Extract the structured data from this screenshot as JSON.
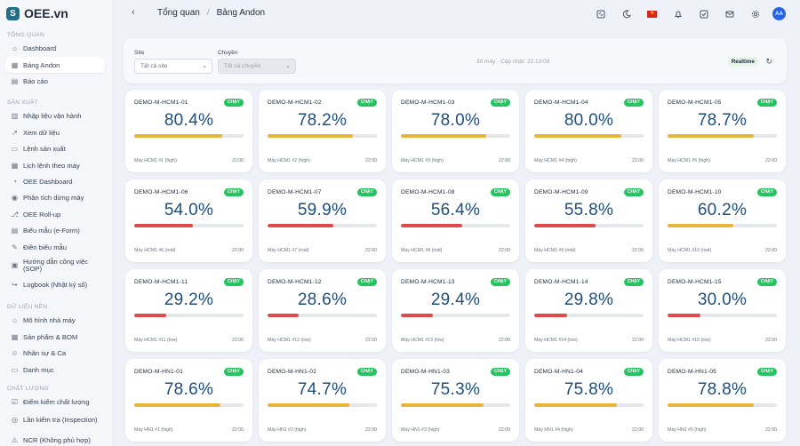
{
  "app": {
    "logo_mark": "S",
    "title": "OEE.vn"
  },
  "sidebar": {
    "sections": [
      {
        "title": "TỔNG QUAN",
        "items": [
          {
            "label": "Dashboard",
            "icon": "home-icon"
          },
          {
            "label": "Bảng Andon",
            "icon": "grid-icon",
            "active": true
          },
          {
            "label": "Báo cáo",
            "icon": "report-icon"
          }
        ]
      },
      {
        "title": "SẢN XUẤT",
        "items": [
          {
            "label": "Nhập liệu vận hành",
            "icon": "input-icon"
          },
          {
            "label": "Xem dữ liệu",
            "icon": "chart-icon"
          },
          {
            "label": "Lệnh sản xuất",
            "icon": "order-icon"
          },
          {
            "label": "Lịch lệnh theo máy",
            "icon": "calendar-icon"
          },
          {
            "label": "OEE Dashboard",
            "icon": "dashboard-icon"
          },
          {
            "label": "Phân tích dừng máy",
            "icon": "stop-icon"
          },
          {
            "label": "OEE Roll-up",
            "icon": "rollup-icon"
          },
          {
            "label": "Biểu mẫu (e-Form)",
            "icon": "form-icon"
          },
          {
            "label": "Điền biểu mẫu",
            "icon": "pen-icon"
          },
          {
            "label": "Hướng dẫn công việc (SOP)",
            "icon": "sop-icon"
          },
          {
            "label": "Logbook (Nhật ký số)",
            "icon": "logbook-icon"
          }
        ]
      },
      {
        "title": "DỮ LIỆU NỀN",
        "items": [
          {
            "label": "Mô hình nhà máy",
            "icon": "factory-icon"
          },
          {
            "label": "Sản phẩm & BOM",
            "icon": "product-icon"
          },
          {
            "label": "Nhân sự & Ca",
            "icon": "people-icon"
          },
          {
            "label": "Danh mục",
            "icon": "folder-icon"
          }
        ]
      },
      {
        "title": "CHẤT LƯỢNG",
        "items": [
          {
            "label": "Điểm kiểm chất lượng",
            "icon": "checklist-icon"
          },
          {
            "label": "Lần kiểm tra (Inspection)",
            "icon": "inspect-icon"
          },
          {
            "label": "NCR (Không phù hợp)",
            "icon": "ncr-icon"
          }
        ]
      }
    ]
  },
  "header": {
    "breadcrumb": [
      "Tổng quan",
      "Bảng Andon"
    ],
    "avatar": "AA"
  },
  "filter": {
    "site_label": "Site",
    "site_value": "Tất cả site",
    "line_label": "Chuyền",
    "line_value": "Tất cả chuyền",
    "updated": "30 máy · Cập nhật: 22:13:09",
    "realtime": "Realtime"
  },
  "colors": {
    "high": "#e8b53a",
    "low": "#e04a4a",
    "badge": "#22c55e",
    "value": "#1f4e79"
  },
  "cards": [
    {
      "name": "DEMO-M-HCM1-01",
      "status": "CHẠY",
      "oee": "80.4%",
      "pct": 80.4,
      "level": "high",
      "device": "Máy HCM1 #1 (high)",
      "time": "22:00"
    },
    {
      "name": "DEMO-M-HCM1-02",
      "status": "CHẠY",
      "oee": "78.2%",
      "pct": 78.2,
      "level": "high",
      "device": "Máy HCM1 #2 (high)",
      "time": "22:00"
    },
    {
      "name": "DEMO-M-HCM1-03",
      "status": "CHẠY",
      "oee": "78.0%",
      "pct": 78.0,
      "level": "high",
      "device": "Máy HCM1 #3 (high)",
      "time": "22:00"
    },
    {
      "name": "DEMO-M-HCM1-04",
      "status": "CHẠY",
      "oee": "80.0%",
      "pct": 80.0,
      "level": "high",
      "device": "Máy HCM1 #4 (high)",
      "time": "22:00"
    },
    {
      "name": "DEMO-M-HCM1-05",
      "status": "CHẠY",
      "oee": "78.7%",
      "pct": 78.7,
      "level": "high",
      "device": "Máy HCM1 #5 (high)",
      "time": "22:00"
    },
    {
      "name": "DEMO-M-HCM1-06",
      "status": "CHẠY",
      "oee": "54.0%",
      "pct": 54.0,
      "level": "low",
      "device": "Máy HCM1 #6 (mid)",
      "time": "22:00"
    },
    {
      "name": "DEMO-M-HCM1-07",
      "status": "CHẠY",
      "oee": "59.9%",
      "pct": 59.9,
      "level": "low",
      "device": "Máy HCM1 #7 (mid)",
      "time": "22:00"
    },
    {
      "name": "DEMO-M-HCM1-08",
      "status": "CHẠY",
      "oee": "56.4%",
      "pct": 56.4,
      "level": "low",
      "device": "Máy HCM1 #8 (mid)",
      "time": "22:00"
    },
    {
      "name": "DEMO-M-HCM1-09",
      "status": "CHẠY",
      "oee": "55.8%",
      "pct": 55.8,
      "level": "low",
      "device": "Máy HCM1 #9 (mid)",
      "time": "22:00"
    },
    {
      "name": "DEMO-M-HCM1-10",
      "status": "CHẠY",
      "oee": "60.2%",
      "pct": 60.2,
      "level": "high",
      "device": "Máy HCM1 #10 (mid)",
      "time": "22:00"
    },
    {
      "name": "DEMO-M-HCM1-11",
      "status": "CHẠY",
      "oee": "29.2%",
      "pct": 29.2,
      "level": "low",
      "device": "Máy HCM1 #11 (low)",
      "time": "22:00"
    },
    {
      "name": "DEMO-M-HCM1-12",
      "status": "CHẠY",
      "oee": "28.6%",
      "pct": 28.6,
      "level": "low",
      "device": "Máy HCM1 #12 (low)",
      "time": "22:00"
    },
    {
      "name": "DEMO-M-HCM1-13",
      "status": "CHẠY",
      "oee": "29.4%",
      "pct": 29.4,
      "level": "low",
      "device": "Máy HCM1 #13 (low)",
      "time": "22:00"
    },
    {
      "name": "DEMO-M-HCM1-14",
      "status": "CHẠY",
      "oee": "29.8%",
      "pct": 29.8,
      "level": "low",
      "device": "Máy HCM1 #14 (low)",
      "time": "22:00"
    },
    {
      "name": "DEMO-M-HCM1-15",
      "status": "CHẠY",
      "oee": "30.0%",
      "pct": 30.0,
      "level": "low",
      "device": "Máy HCM1 #15 (low)",
      "time": "22:00"
    },
    {
      "name": "DEMO-M-HN1-01",
      "status": "CHẠY",
      "oee": "78.6%",
      "pct": 78.6,
      "level": "high",
      "device": "Máy HN1 #1 (high)",
      "time": "22:00"
    },
    {
      "name": "DEMO-M-HN1-02",
      "status": "CHẠY",
      "oee": "74.7%",
      "pct": 74.7,
      "level": "high",
      "device": "Máy HN1 #2 (high)",
      "time": "22:00"
    },
    {
      "name": "DEMO-M-HN1-03",
      "status": "CHẠY",
      "oee": "75.3%",
      "pct": 75.3,
      "level": "high",
      "device": "Máy HN1 #3 (high)",
      "time": "22:00"
    },
    {
      "name": "DEMO-M-HN1-04",
      "status": "CHẠY",
      "oee": "75.8%",
      "pct": 75.8,
      "level": "high",
      "device": "Máy HN1 #4 (high)",
      "time": "22:00"
    },
    {
      "name": "DEMO-M-HN1-05",
      "status": "CHẠY",
      "oee": "78.8%",
      "pct": 78.8,
      "level": "high",
      "device": "Máy HN1 #5 (high)",
      "time": "22:00"
    }
  ]
}
